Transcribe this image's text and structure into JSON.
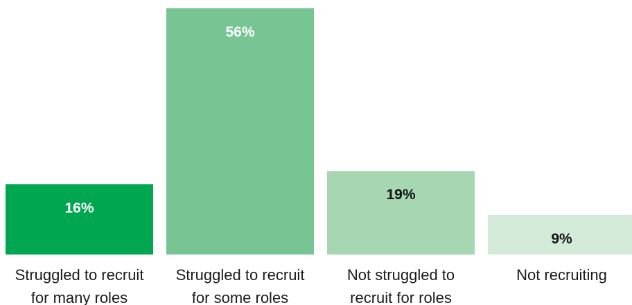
{
  "chart_data": {
    "type": "bar",
    "categories": [
      [
        "Struggled to recruit",
        "for many roles"
      ],
      [
        "Struggled to recruit",
        "for some roles"
      ],
      [
        "Not struggled to",
        "recruit for roles"
      ],
      [
        "Not recruiting"
      ]
    ],
    "values": [
      16,
      56,
      19,
      9
    ],
    "data_labels": [
      "16%",
      "56%",
      "19%",
      "9%"
    ],
    "bar_colors": [
      "#00a650",
      "#76c593",
      "#a6d7b2",
      "#d3ead9"
    ],
    "label_colors": [
      "#ffffff",
      "#ffffff",
      "#111111",
      "#111111"
    ],
    "ylim": [
      0,
      56
    ],
    "grid": false,
    "legend": "none"
  }
}
